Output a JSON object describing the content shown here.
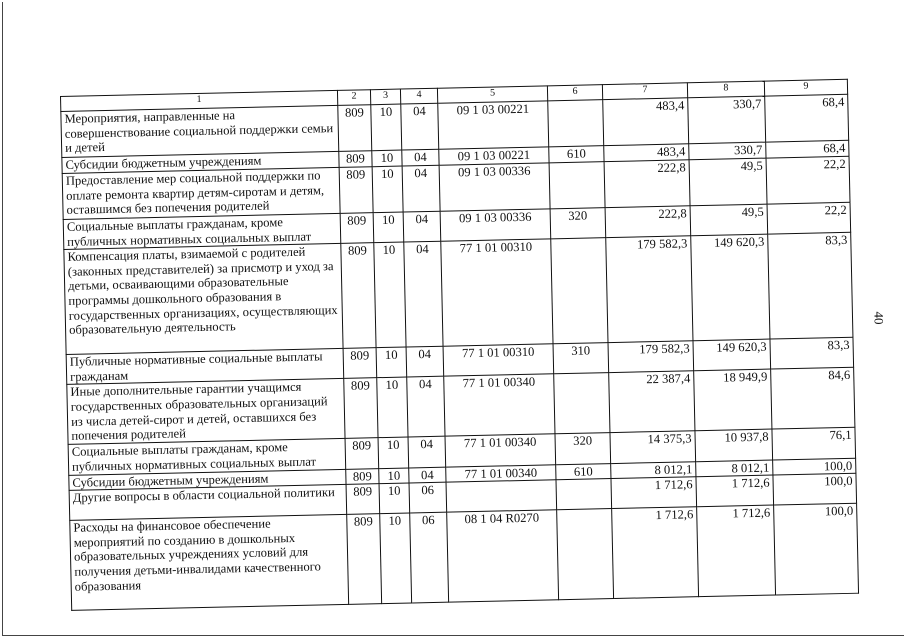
{
  "page_number": "40",
  "table": {
    "header": [
      "1",
      "2",
      "3",
      "4",
      "5",
      "6",
      "7",
      "8",
      "9"
    ],
    "rows": [
      {
        "name": "Мероприятия, направленные на совершенствование социальной поддержки семьи и детей",
        "c2": "809",
        "c3": "10",
        "c4": "04",
        "c5": "09 1 03 00221",
        "c6": "",
        "c7": "483,4",
        "c8": "330,7",
        "c9": "68,4"
      },
      {
        "name": "Субсидии бюджетным учреждениям",
        "c2": "809",
        "c3": "10",
        "c4": "04",
        "c5": "09 1 03 00221",
        "c6": "610",
        "c7": "483,4",
        "c8": "330,7",
        "c9": "68,4"
      },
      {
        "name": "Предоставление мер социальной поддержки по оплате ремонта квартир детям-сиротам и детям, оставшимся без попечения родителей",
        "c2": "809",
        "c3": "10",
        "c4": "04",
        "c5": "09 1 03 00336",
        "c6": "",
        "c7": "222,8",
        "c8": "49,5",
        "c9": "22,2"
      },
      {
        "name": "Социальные выплаты гражданам, кроме публичных нормативных социальных выплат",
        "c2": "809",
        "c3": "10",
        "c4": "04",
        "c5": "09 1 03 00336",
        "c6": "320",
        "c7": "222,8",
        "c8": "49,5",
        "c9": "22,2"
      },
      {
        "name": "Компенсация платы, взимаемой с родителей (законных представителей) за присмотр и уход за детьми, осваивающими образовательные программы дошкольного образования в государственных организациях, осуществляющих образовательную деятельность",
        "c2": "809",
        "c3": "10",
        "c4": "04",
        "c5": "77 1 01 00310",
        "c6": "",
        "c7": "179 582,3",
        "c8": "149 620,3",
        "c9": "83,3"
      },
      {
        "name": "Публичные нормативные социальные выплаты гражданам",
        "c2": "809",
        "c3": "10",
        "c4": "04",
        "c5": "77 1 01 00310",
        "c6": "310",
        "c7": "179 582,3",
        "c8": "149 620,3",
        "c9": "83,3"
      },
      {
        "name": "Иные дополнительные гарантии учащимся государственных образовательных организаций из числа детей-сирот и детей, оставшихся без попечения родителей",
        "c2": "809",
        "c3": "10",
        "c4": "04",
        "c5": "77 1 01 00340",
        "c6": "",
        "c7": "22 387,4",
        "c8": "18 949,9",
        "c9": "84,6"
      },
      {
        "name": "Социальные выплаты гражданам, кроме публичных нормативных социальных выплат",
        "c2": "809",
        "c3": "10",
        "c4": "04",
        "c5": "77 1 01 00340",
        "c6": "320",
        "c7": "14 375,3",
        "c8": "10 937,8",
        "c9": "76,1"
      },
      {
        "name": "Субсидии бюджетным учреждениям",
        "c2": "809",
        "c3": "10",
        "c4": "04",
        "c5": "77 1 01 00340",
        "c6": "610",
        "c7": "8 012,1",
        "c8": "8 012,1",
        "c9": "100,0"
      },
      {
        "name": "Другие вопросы в области социальной политики",
        "c2": "809",
        "c3": "10",
        "c4": "06",
        "c5": "",
        "c6": "",
        "c7": "1 712,6",
        "c8": "1 712,6",
        "c9": "100,0"
      },
      {
        "name": "Расходы на финансовое обеспечение мероприятий по созданию в дошкольных образовательных учреждениях условий для получения детьми-инвалидами качественного образования",
        "c2": "809",
        "c3": "10",
        "c4": "06",
        "c5": "08 1 04 R0270",
        "c6": "",
        "c7": "1 712,6",
        "c8": "1 712,6",
        "c9": "100,0"
      }
    ]
  }
}
